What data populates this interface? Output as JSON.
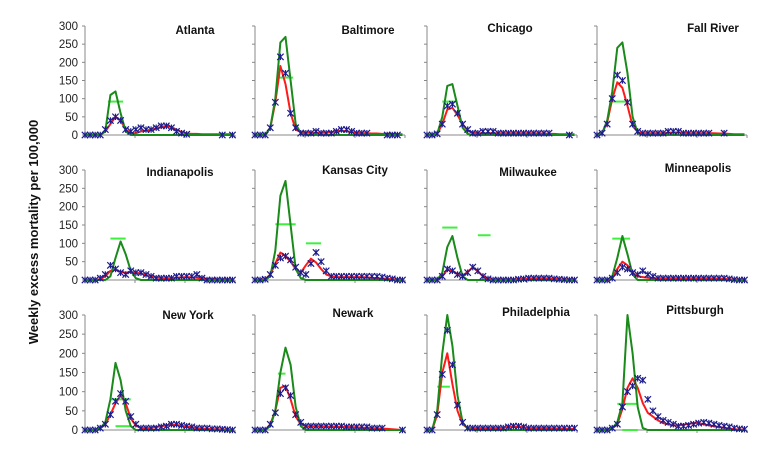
{
  "ylabel": "Weekly excess mortality per 100,000",
  "colors": {
    "observed": "#1c1c8c",
    "model_red": "#ff1a1a",
    "model_green": "#1a8a1a",
    "segment": "#3ef03e",
    "axis": "#888888"
  },
  "chart_data": [
    {
      "type": "line",
      "title": "Atlanta",
      "ylim": [
        0,
        300
      ],
      "yticks": [
        "0",
        "50",
        "100",
        "150",
        "200",
        "250",
        "300"
      ],
      "observed": [
        0,
        0,
        0,
        0,
        15,
        40,
        50,
        40,
        15,
        10,
        15,
        20,
        15,
        15,
        20,
        25,
        25,
        20,
        10,
        5,
        2,
        null,
        null,
        null,
        null,
        null,
        null,
        0,
        null,
        0
      ],
      "red": [
        0,
        0,
        0,
        0,
        10,
        30,
        50,
        40,
        15,
        5,
        5,
        10,
        12,
        15,
        18,
        22,
        25,
        22,
        15,
        8,
        4,
        3,
        3,
        2,
        2,
        2,
        2,
        2,
        2,
        2
      ],
      "green": [
        0,
        0,
        0,
        0,
        10,
        110,
        120,
        60,
        10,
        0,
        0,
        0,
        0,
        0,
        0,
        0,
        0,
        0,
        0,
        0,
        0,
        0,
        0,
        0,
        0,
        0,
        0,
        0,
        0,
        0
      ],
      "segments": [
        {
          "from": 4.5,
          "to": 7.5,
          "y": 92
        }
      ]
    },
    {
      "type": "line",
      "title": "Baltimore",
      "ylim": [
        0,
        300
      ],
      "observed": [
        0,
        0,
        0,
        20,
        90,
        215,
        170,
        60,
        20,
        5,
        5,
        5,
        10,
        5,
        5,
        5,
        10,
        15,
        15,
        10,
        5,
        5,
        5,
        null,
        null,
        null,
        0,
        0,
        0,
        null
      ],
      "red": [
        0,
        0,
        0,
        20,
        90,
        190,
        140,
        60,
        15,
        8,
        6,
        6,
        6,
        6,
        6,
        8,
        10,
        12,
        10,
        8,
        6,
        5,
        5,
        4,
        4,
        3,
        3,
        3,
        2,
        2
      ],
      "green": [
        0,
        0,
        0,
        20,
        100,
        255,
        270,
        150,
        30,
        5,
        0,
        0,
        0,
        0,
        0,
        0,
        0,
        0,
        0,
        0,
        0,
        0,
        0,
        0,
        0,
        0,
        0,
        0,
        0,
        0
      ],
      "segments": [
        {
          "from": 4.5,
          "to": 7.5,
          "y": 158
        }
      ]
    },
    {
      "type": "line",
      "title": "Chicago",
      "ylim": [
        0,
        300
      ],
      "observed": [
        0,
        0,
        3,
        30,
        80,
        85,
        60,
        30,
        15,
        5,
        5,
        10,
        10,
        10,
        5,
        5,
        5,
        5,
        5,
        5,
        5,
        5,
        5,
        5,
        5,
        null,
        null,
        null,
        0,
        null
      ],
      "red": [
        0,
        0,
        3,
        30,
        70,
        75,
        55,
        30,
        12,
        6,
        5,
        5,
        5,
        5,
        5,
        5,
        5,
        5,
        5,
        5,
        5,
        5,
        4,
        4,
        3,
        3,
        2,
        2,
        2,
        2
      ],
      "green": [
        0,
        0,
        3,
        50,
        135,
        140,
        80,
        20,
        3,
        0,
        0,
        0,
        0,
        0,
        0,
        0,
        0,
        0,
        0,
        0,
        0,
        0,
        0,
        0,
        0,
        0,
        0,
        0,
        0,
        0
      ],
      "segments": [
        {
          "from": 3,
          "to": 6,
          "y": 92
        }
      ]
    },
    {
      "type": "line",
      "title": "Fall River",
      "ylim": [
        0,
        300
      ],
      "observed": [
        0,
        5,
        30,
        100,
        165,
        150,
        90,
        30,
        10,
        5,
        5,
        5,
        5,
        5,
        10,
        10,
        10,
        5,
        5,
        5,
        5,
        5,
        5,
        null,
        null,
        5,
        null,
        null,
        null,
        null
      ],
      "red": [
        0,
        5,
        35,
        100,
        145,
        130,
        80,
        25,
        8,
        5,
        5,
        5,
        5,
        5,
        6,
        7,
        7,
        6,
        5,
        5,
        5,
        5,
        5,
        5,
        4,
        4,
        3,
        2,
        2,
        2
      ],
      "green": [
        0,
        5,
        40,
        120,
        240,
        255,
        170,
        50,
        5,
        0,
        0,
        0,
        0,
        0,
        0,
        0,
        0,
        0,
        0,
        0,
        0,
        0,
        0,
        0,
        0,
        0,
        0,
        0,
        0,
        0
      ],
      "segments": [
        {
          "from": 2.5,
          "to": 5.5,
          "y": 92
        }
      ]
    },
    {
      "type": "line",
      "title": "Indianapolis",
      "ylim": [
        0,
        300
      ],
      "yticks": [
        "0",
        "50",
        "100",
        "150",
        "200",
        "250",
        "300"
      ],
      "observed": [
        0,
        0,
        0,
        5,
        15,
        40,
        30,
        20,
        15,
        25,
        20,
        20,
        15,
        10,
        5,
        5,
        5,
        5,
        10,
        10,
        10,
        10,
        15,
        5,
        0,
        0,
        0,
        0,
        0,
        0
      ],
      "red": [
        0,
        0,
        0,
        2,
        10,
        25,
        28,
        22,
        20,
        22,
        20,
        18,
        14,
        10,
        7,
        5,
        5,
        5,
        6,
        7,
        8,
        7,
        6,
        4,
        3,
        2,
        1,
        1,
        1,
        1
      ],
      "green": [
        0,
        0,
        0,
        0,
        0,
        10,
        60,
        105,
        70,
        25,
        5,
        0,
        0,
        0,
        0,
        0,
        0,
        0,
        0,
        0,
        0,
        0,
        0,
        0,
        0,
        0,
        0,
        0,
        0,
        0
      ],
      "segments": [
        {
          "from": 5,
          "to": 8,
          "y": 113
        }
      ]
    },
    {
      "type": "line",
      "title": "Kansas City",
      "ylim": [
        0,
        300
      ],
      "observed": [
        0,
        0,
        2,
        15,
        40,
        60,
        65,
        55,
        35,
        20,
        15,
        45,
        75,
        50,
        25,
        10,
        10,
        10,
        10,
        10,
        10,
        10,
        10,
        10,
        10,
        8,
        5,
        3,
        0,
        0
      ],
      "red": [
        0,
        0,
        2,
        15,
        45,
        75,
        65,
        50,
        30,
        20,
        40,
        58,
        48,
        30,
        15,
        10,
        8,
        8,
        8,
        8,
        8,
        8,
        7,
        6,
        5,
        4,
        3,
        2,
        1,
        1
      ],
      "green": [
        0,
        0,
        0,
        10,
        80,
        230,
        270,
        150,
        30,
        5,
        0,
        0,
        0,
        0,
        0,
        0,
        0,
        0,
        0,
        0,
        0,
        0,
        0,
        0,
        0,
        0,
        0,
        0,
        0,
        0
      ],
      "segments": [
        {
          "from": 4,
          "to": 8,
          "y": 152
        },
        {
          "from": 10,
          "to": 13,
          "y": 100
        }
      ]
    },
    {
      "type": "line",
      "title": "Milwaukee",
      "ylim": [
        0,
        300
      ],
      "observed": [
        0,
        0,
        0,
        10,
        30,
        25,
        15,
        10,
        20,
        35,
        25,
        10,
        3,
        0,
        0,
        0,
        0,
        0,
        2,
        3,
        5,
        5,
        5,
        5,
        5,
        3,
        2,
        1,
        0,
        0
      ],
      "red": [
        0,
        0,
        0,
        10,
        28,
        25,
        16,
        12,
        22,
        35,
        24,
        10,
        3,
        1,
        1,
        1,
        1,
        1,
        2,
        3,
        4,
        5,
        5,
        5,
        4,
        3,
        2,
        1,
        1,
        1
      ],
      "green": [
        0,
        0,
        0,
        20,
        90,
        120,
        60,
        10,
        0,
        0,
        0,
        0,
        0,
        0,
        0,
        0,
        0,
        0,
        0,
        0,
        0,
        0,
        0,
        0,
        0,
        0,
        0,
        0,
        0,
        0
      ],
      "segments": [
        {
          "from": 3,
          "to": 6,
          "y": 143
        },
        {
          "from": 10,
          "to": 12.5,
          "y": 122
        }
      ]
    },
    {
      "type": "line",
      "title": "Minneapolis",
      "ylim": [
        0,
        300
      ],
      "observed": [
        0,
        0,
        0,
        5,
        20,
        35,
        30,
        20,
        15,
        25,
        15,
        10,
        5,
        5,
        5,
        5,
        5,
        5,
        5,
        5,
        5,
        5,
        5,
        5,
        5,
        5,
        3,
        1,
        0,
        0
      ],
      "red": [
        0,
        0,
        0,
        5,
        30,
        50,
        40,
        20,
        10,
        8,
        6,
        5,
        5,
        5,
        5,
        5,
        5,
        5,
        5,
        5,
        5,
        5,
        5,
        4,
        4,
        3,
        2,
        1,
        1,
        1
      ],
      "green": [
        0,
        0,
        0,
        10,
        60,
        120,
        70,
        15,
        0,
        0,
        0,
        0,
        0,
        0,
        0,
        0,
        0,
        0,
        0,
        0,
        0,
        0,
        0,
        0,
        0,
        0,
        0,
        0,
        0,
        0
      ],
      "segments": [
        {
          "from": 3,
          "to": 6.5,
          "y": 113
        }
      ]
    },
    {
      "type": "line",
      "title": "New York",
      "ylim": [
        0,
        300
      ],
      "yticks": [
        "0",
        "50",
        "100",
        "150",
        "200",
        "250",
        "300"
      ],
      "observed": [
        0,
        0,
        0,
        5,
        15,
        40,
        75,
        95,
        75,
        35,
        15,
        5,
        5,
        5,
        5,
        8,
        10,
        15,
        15,
        12,
        10,
        8,
        5,
        5,
        5,
        3,
        3,
        2,
        1,
        0
      ],
      "red": [
        0,
        0,
        0,
        5,
        15,
        40,
        70,
        90,
        70,
        30,
        12,
        5,
        5,
        5,
        8,
        10,
        12,
        14,
        13,
        11,
        9,
        7,
        5,
        4,
        3,
        2,
        2,
        1,
        1,
        0
      ],
      "green": [
        0,
        0,
        0,
        5,
        20,
        80,
        175,
        130,
        50,
        10,
        0,
        0,
        0,
        0,
        0,
        0,
        0,
        0,
        0,
        0,
        0,
        0,
        0,
        0,
        0,
        0,
        0,
        0,
        0,
        0
      ],
      "segments": [
        {
          "from": 5,
          "to": 9,
          "y": 80
        },
        {
          "from": 6,
          "to": 9,
          "y": 10
        }
      ]
    },
    {
      "type": "line",
      "title": "Newark",
      "ylim": [
        0,
        300
      ],
      "observed": [
        0,
        0,
        0,
        15,
        45,
        95,
        110,
        90,
        40,
        20,
        10,
        10,
        10,
        10,
        10,
        10,
        10,
        10,
        8,
        8,
        8,
        8,
        8,
        5,
        5,
        5,
        null,
        null,
        null,
        0
      ],
      "red": [
        0,
        0,
        0,
        15,
        50,
        110,
        115,
        80,
        35,
        15,
        10,
        10,
        10,
        10,
        9,
        9,
        9,
        8,
        8,
        7,
        7,
        6,
        6,
        5,
        4,
        4,
        3,
        2,
        1,
        0
      ],
      "green": [
        0,
        0,
        0,
        10,
        50,
        150,
        215,
        170,
        60,
        10,
        0,
        0,
        0,
        0,
        0,
        0,
        0,
        0,
        0,
        0,
        0,
        0,
        0,
        0,
        0,
        0,
        0,
        0,
        0,
        0
      ],
      "segments": [
        {
          "from": 4.5,
          "to": 6,
          "y": 147
        }
      ]
    },
    {
      "type": "line",
      "title": "Philadelphia",
      "ylim": [
        0,
        300
      ],
      "observed": [
        0,
        0,
        40,
        145,
        260,
        170,
        65,
        20,
        5,
        5,
        5,
        5,
        5,
        5,
        5,
        5,
        8,
        10,
        10,
        8,
        5,
        5,
        5,
        5,
        5,
        5,
        5,
        5,
        5,
        5
      ],
      "red": [
        0,
        0,
        40,
        150,
        200,
        120,
        50,
        15,
        5,
        5,
        5,
        5,
        5,
        5,
        5,
        6,
        8,
        9,
        9,
        7,
        5,
        5,
        5,
        5,
        5,
        4,
        4,
        4,
        3,
        3
      ],
      "green": [
        0,
        0,
        50,
        200,
        300,
        220,
        90,
        20,
        3,
        0,
        0,
        0,
        0,
        0,
        0,
        0,
        0,
        0,
        0,
        0,
        0,
        0,
        0,
        0,
        0,
        0,
        0,
        0,
        0,
        0
      ],
      "segments": [
        {
          "from": 2,
          "to": 4.5,
          "y": 113
        }
      ]
    },
    {
      "type": "line",
      "title": "Pittsburgh",
      "ylim": [
        0,
        300
      ],
      "observed": [
        0,
        0,
        0,
        5,
        15,
        60,
        100,
        115,
        135,
        130,
        80,
        50,
        35,
        25,
        20,
        15,
        10,
        10,
        12,
        15,
        18,
        20,
        18,
        15,
        12,
        10,
        8,
        5,
        3,
        2
      ],
      "red": [
        0,
        0,
        0,
        5,
        15,
        55,
        110,
        135,
        110,
        70,
        45,
        35,
        25,
        18,
        15,
        12,
        12,
        14,
        16,
        18,
        18,
        15,
        12,
        10,
        8,
        6,
        4,
        2,
        1,
        1
      ],
      "green": [
        0,
        0,
        0,
        5,
        20,
        70,
        300,
        200,
        60,
        5,
        0,
        0,
        0,
        0,
        0,
        0,
        0,
        0,
        0,
        0,
        0,
        0,
        0,
        0,
        0,
        0,
        0,
        0,
        0,
        0
      ],
      "segments": [
        {
          "from": 4,
          "to": 8,
          "y": 68
        },
        {
          "from": 5,
          "to": 8,
          "y": 0
        }
      ]
    }
  ]
}
